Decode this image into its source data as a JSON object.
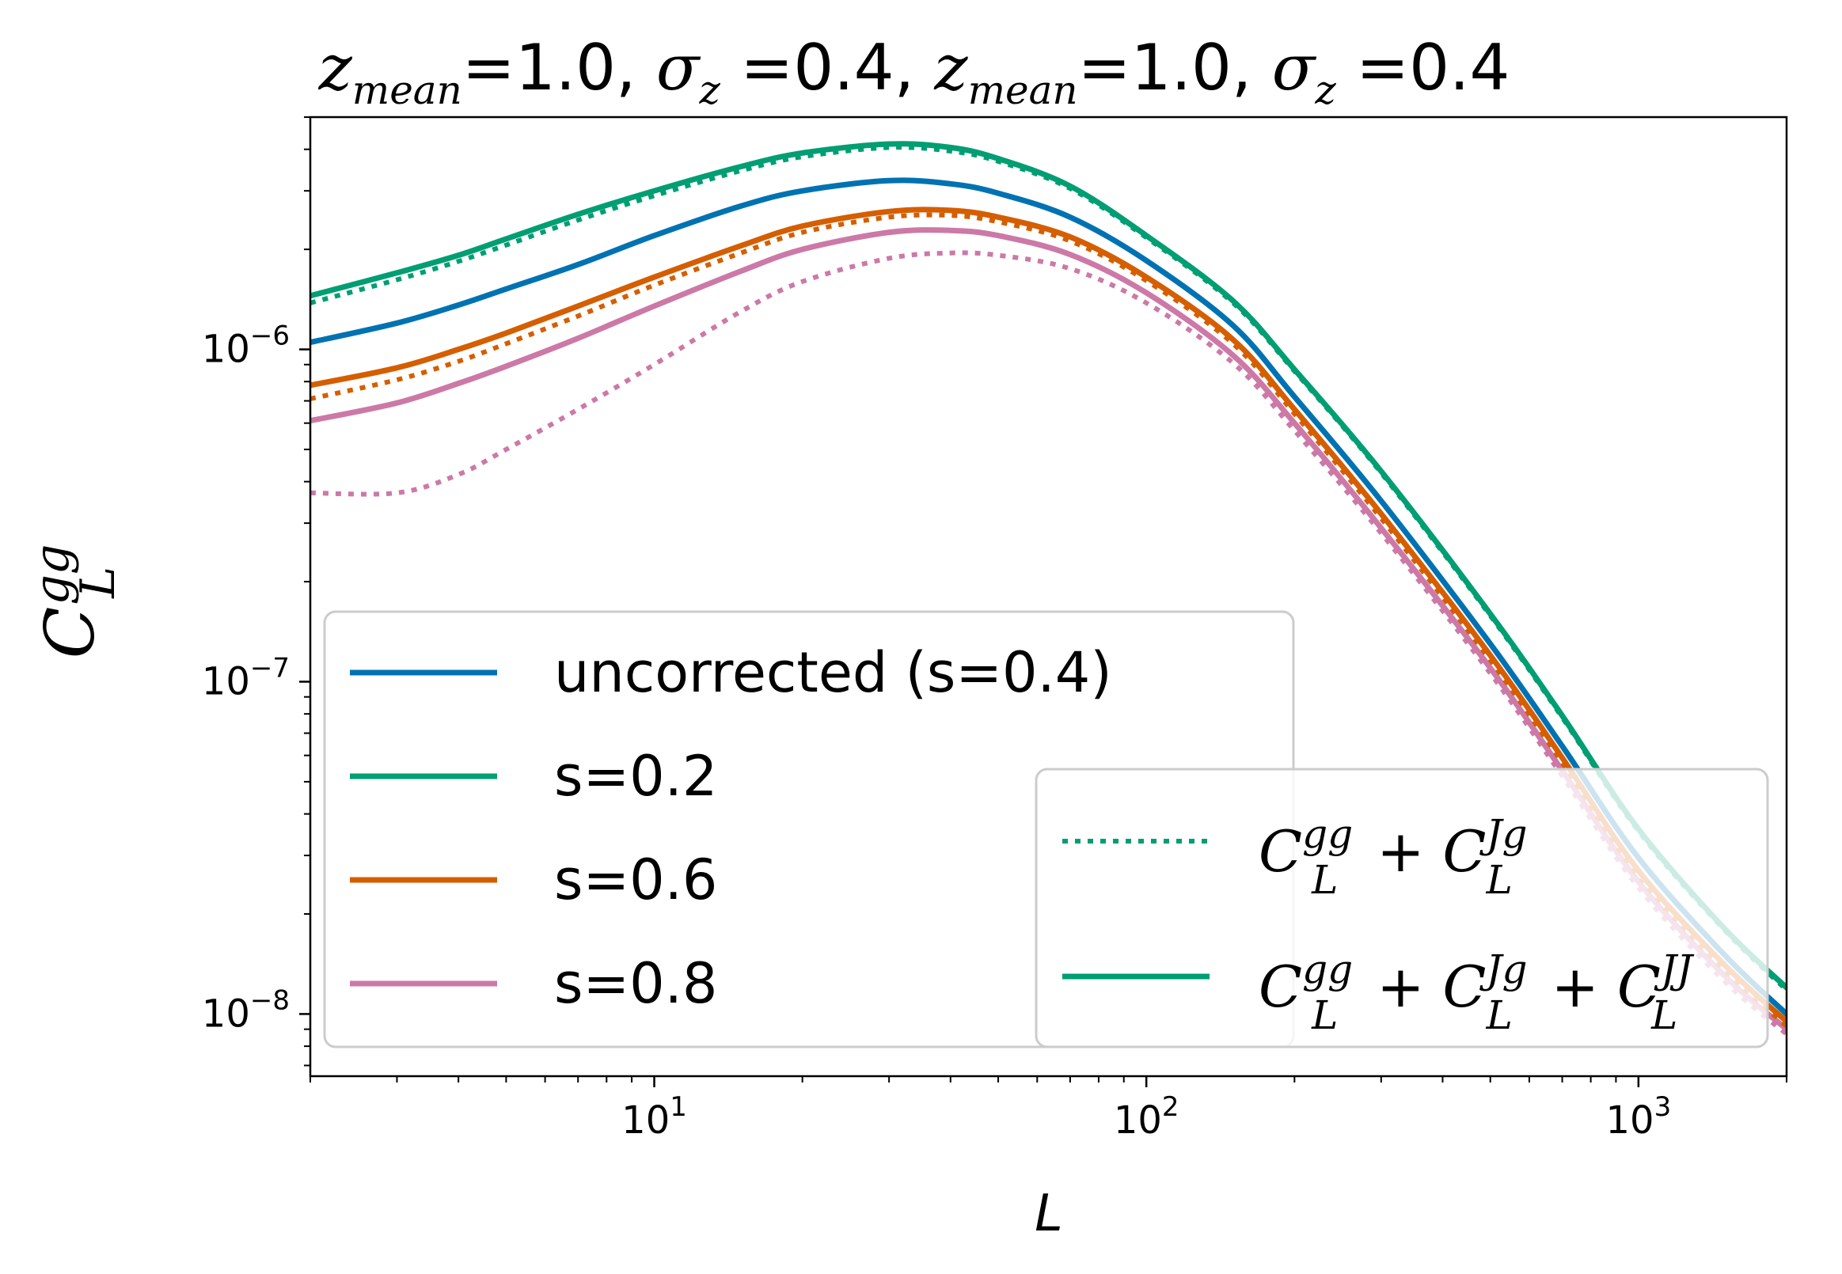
{
  "chart_data": {
    "type": "line",
    "title_parts": {
      "z": "z",
      "mean_sub": "mean",
      "eq1": "=1.0, ",
      "sigma": "σ",
      "z_sub": "z",
      "eq2": " =0.4, ",
      "eq3": "=1.0, ",
      "eq4": " =0.4"
    },
    "xlabel": "L",
    "ylabel": {
      "base": "C",
      "sup": "gg",
      "sub": "L"
    },
    "xscale": "log",
    "yscale": "log",
    "xlim": [
      2,
      2000
    ],
    "ylim": [
      6.5e-09,
      5e-06
    ],
    "xticks": [
      {
        "value": 10,
        "base": "10",
        "exp": "1"
      },
      {
        "value": 100,
        "base": "10",
        "exp": "2"
      },
      {
        "value": 1000,
        "base": "10",
        "exp": "3"
      }
    ],
    "yticks": [
      {
        "value": 1e-06,
        "base": "10",
        "exp": "−6"
      },
      {
        "value": 1e-07,
        "base": "10",
        "exp": "−7"
      },
      {
        "value": 1e-08,
        "base": "10",
        "exp": "−8"
      }
    ],
    "x": [
      2,
      3,
      4,
      5,
      7,
      10,
      15,
      20,
      30,
      40,
      50,
      70,
      100,
      150,
      200,
      300,
      500,
      700,
      1000,
      1500,
      2000
    ],
    "series": [
      {
        "name": "uncorrected (s=0.4)",
        "color": "#0072b2",
        "style": "solid",
        "legend": true,
        "values": [
          1.05e-06,
          1.2e-06,
          1.36e-06,
          1.52e-06,
          1.8e-06,
          2.2e-06,
          2.7e-06,
          3e-06,
          3.22e-06,
          3.15e-06,
          2.95e-06,
          2.5e-06,
          1.85e-06,
          1.18e-06,
          7.2e-07,
          3.5e-07,
          1.3e-07,
          6.4e-08,
          2.95e-08,
          1.5e-08,
          1e-08
        ]
      },
      {
        "name": "s=0.2",
        "color": "#009e73",
        "style": "solid",
        "legend": true,
        "values": [
          1.45e-06,
          1.7e-06,
          1.92e-06,
          2.15e-06,
          2.55e-06,
          3e-06,
          3.55e-06,
          3.9e-06,
          4.15e-06,
          4.05e-06,
          3.75e-06,
          3.1e-06,
          2.2e-06,
          1.4e-06,
          8.7e-07,
          4.3e-07,
          1.6e-07,
          7.9e-08,
          3.6e-08,
          1.8e-08,
          1.2e-08
        ]
      },
      {
        "name": "s=0.2 (C_L^gg + C_L^Jg)",
        "color": "#009e73",
        "style": "dotted",
        "legend": false,
        "values": [
          1.38e-06,
          1.62e-06,
          1.84e-06,
          2.06e-06,
          2.45e-06,
          2.9e-06,
          3.45e-06,
          3.8e-06,
          4.05e-06,
          3.95e-06,
          3.68e-06,
          3.05e-06,
          2.17e-06,
          1.38e-06,
          8.6e-07,
          4.25e-07,
          1.58e-07,
          7.8e-08,
          3.55e-08,
          1.78e-08,
          1.18e-08
        ]
      },
      {
        "name": "s=0.6",
        "color": "#d55e00",
        "style": "solid",
        "legend": true,
        "values": [
          7.8e-07,
          8.8e-07,
          1e-06,
          1.12e-06,
          1.35e-06,
          1.65e-06,
          2.05e-06,
          2.35e-06,
          2.6e-06,
          2.62e-06,
          2.5e-06,
          2.18e-06,
          1.65e-06,
          1.07e-06,
          6.6e-07,
          3.2e-07,
          1.2e-07,
          5.9e-08,
          2.7e-08,
          1.4e-08,
          9.5e-09
        ]
      },
      {
        "name": "s=0.6 (C_L^gg + C_L^Jg)",
        "color": "#d55e00",
        "style": "dotted",
        "legend": false,
        "values": [
          7.1e-07,
          8.1e-07,
          9.2e-07,
          1.04e-06,
          1.26e-06,
          1.56e-06,
          1.95e-06,
          2.25e-06,
          2.5e-06,
          2.53e-06,
          2.42e-06,
          2.12e-06,
          1.61e-06,
          1.04e-06,
          6.4e-07,
          3.1e-07,
          1.16e-07,
          5.7e-08,
          2.6e-08,
          1.35e-08,
          9.2e-09
        ]
      },
      {
        "name": "s=0.8",
        "color": "#cc79a7",
        "style": "solid",
        "legend": true,
        "values": [
          6.1e-07,
          6.9e-07,
          7.9e-07,
          8.9e-07,
          1.08e-06,
          1.35e-06,
          1.72e-06,
          2e-06,
          2.25e-06,
          2.28e-06,
          2.2e-06,
          1.93e-06,
          1.48e-06,
          9.6e-07,
          6e-07,
          2.9e-07,
          1.1e-07,
          5.4e-08,
          2.5e-08,
          1.3e-08,
          9e-09
        ]
      },
      {
        "name": "s=0.8 (C_L^gg + C_L^Jg)",
        "color": "#cc79a7",
        "style": "dotted",
        "legend": false,
        "values": [
          3.7e-07,
          3.7e-07,
          4.2e-07,
          5e-07,
          6.6e-07,
          9e-07,
          1.3e-06,
          1.6e-06,
          1.88e-06,
          1.95e-06,
          1.92e-06,
          1.75e-06,
          1.38e-06,
          9.1e-07,
          5.7e-07,
          2.8e-07,
          1.06e-07,
          5.2e-08,
          2.4e-08,
          1.25e-08,
          8.7e-09
        ]
      }
    ],
    "legend_main": [
      {
        "label": "uncorrected (s=0.4)",
        "color": "#0072b2",
        "style": "solid"
      },
      {
        "label": "s=0.2",
        "color": "#009e73",
        "style": "solid"
      },
      {
        "label": "s=0.6",
        "color": "#d55e00",
        "style": "solid"
      },
      {
        "label": "s=0.8",
        "color": "#cc79a7",
        "style": "solid"
      }
    ],
    "legend_main_position": "lower-left",
    "legend_style": [
      {
        "style": "dotted",
        "color": "#009e73",
        "label_parts": {
          "c1": "C",
          "sup1": "gg",
          "sub1": "L",
          "plus1": " + ",
          "c2": "C",
          "sup2": "Jg",
          "sub2": "L"
        }
      },
      {
        "style": "solid",
        "color": "#009e73",
        "label_parts": {
          "c1": "C",
          "sup1": "gg",
          "sub1": "L",
          "plus1": " + ",
          "c2": "C",
          "sup2": "Jg",
          "sub2": "L",
          "plus2": " + ",
          "c3": "C",
          "sup3": "JJ",
          "sub3": "L"
        }
      }
    ],
    "legend_style_position": "lower-right",
    "grid": false
  }
}
